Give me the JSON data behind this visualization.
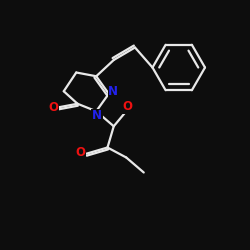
{
  "bg_color": "#0a0a0a",
  "bond_color": "#e8e8e8",
  "nitrogen_color": "#2222ee",
  "oxygen_color": "#ee1111",
  "bond_width": 1.6,
  "font_size_atom": 8.5,
  "fig_bg": "#0d0d0d",
  "xlim": [
    0,
    10
  ],
  "ylim": [
    0,
    10
  ]
}
